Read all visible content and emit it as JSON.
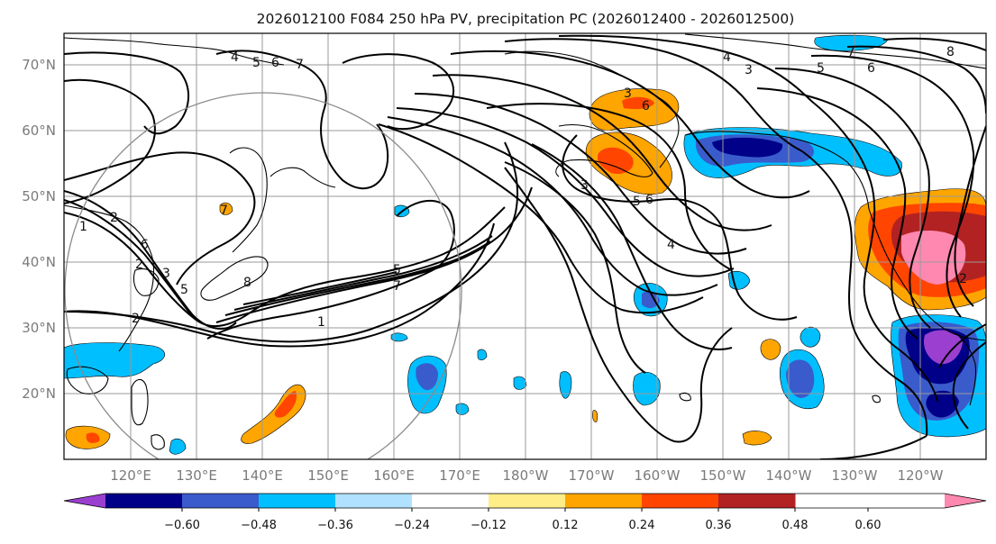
{
  "title": "2026012100 F084 250 hPa PV, precipitation PC (2026012400 - 2026012500)",
  "lat_labels": [
    "70°N",
    "60°N",
    "50°N",
    "40°N",
    "30°N",
    "20°N"
  ],
  "lon_labels": [
    "120°E",
    "130°E",
    "140°E",
    "150°E",
    "160°E",
    "170°E",
    "180°W",
    "170°W",
    "160°W",
    "150°W",
    "140°W",
    "130°W",
    "120°W"
  ],
  "colorbar": {
    "colors": [
      "#9b3fd0",
      "#000088",
      "#3a5bcc",
      "#00bfff",
      "#b0e2ff",
      "#ffffff",
      "#ffee88",
      "#ffa500",
      "#ff4500",
      "#b22222",
      "#ff88b0"
    ],
    "ticks": [
      "−0.60",
      "−0.48",
      "−0.36",
      "−0.24",
      "−0.12",
      "0.12",
      "0.24",
      "0.36",
      "0.48",
      "0.60"
    ]
  },
  "pv_labels": [
    {
      "id": "a",
      "text": "4"
    },
    {
      "id": "b",
      "text": "5"
    },
    {
      "id": "c",
      "text": "6"
    },
    {
      "id": "d",
      "text": "7"
    },
    {
      "id": "e",
      "text": "1"
    },
    {
      "id": "f",
      "text": "2"
    },
    {
      "id": "g",
      "text": "6"
    },
    {
      "id": "h",
      "text": "2"
    },
    {
      "id": "i",
      "text": "3"
    },
    {
      "id": "j",
      "text": "5"
    },
    {
      "id": "k",
      "text": "8"
    },
    {
      "id": "l",
      "text": "7"
    },
    {
      "id": "m",
      "text": "5"
    },
    {
      "id": "n",
      "text": "7"
    },
    {
      "id": "o",
      "text": "1"
    },
    {
      "id": "p",
      "text": "2"
    },
    {
      "id": "q",
      "text": "4"
    },
    {
      "id": "r",
      "text": "3"
    },
    {
      "id": "s",
      "text": "5"
    },
    {
      "id": "t",
      "text": "7"
    },
    {
      "id": "u",
      "text": "6"
    },
    {
      "id": "v",
      "text": "8"
    },
    {
      "id": "w",
      "text": "3"
    },
    {
      "id": "x",
      "text": "6"
    },
    {
      "id": "y",
      "text": "5"
    },
    {
      "id": "z",
      "text": "4"
    },
    {
      "id": "aa",
      "text": "3"
    },
    {
      "id": "ab",
      "text": "6"
    },
    {
      "id": "ac",
      "text": "2"
    }
  ]
}
